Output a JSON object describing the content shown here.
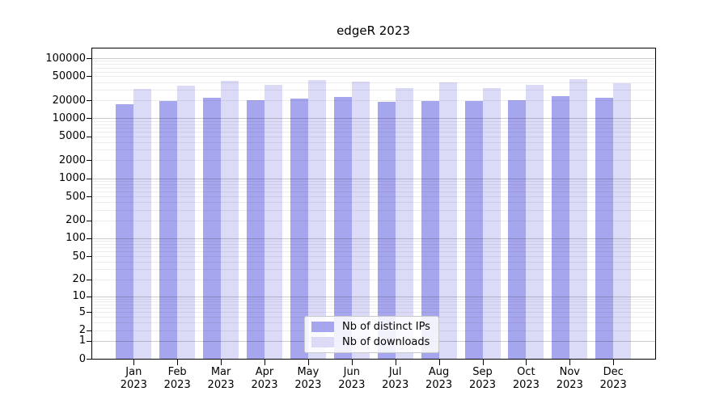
{
  "title": "edgeR 2023",
  "legend": {
    "items": [
      {
        "label": "Nb of distinct IPs",
        "color": "#a6a6ee"
      },
      {
        "label": "Nb of downloads",
        "color": "#dbdbf8"
      }
    ]
  },
  "chart_data": {
    "type": "bar",
    "title": "edgeR 2023",
    "categories": [
      "Jan",
      "Feb",
      "Mar",
      "Apr",
      "May",
      "Jun",
      "Jul",
      "Aug",
      "Sep",
      "Oct",
      "Nov",
      "Dec"
    ],
    "year_label": "2023",
    "series": [
      {
        "name": "Nb of distinct IPs",
        "color": "#a6a6ee",
        "values": [
          17300,
          19600,
          22000,
          19800,
          21500,
          22800,
          18800,
          19600,
          19200,
          20200,
          23500,
          22000
        ]
      },
      {
        "name": "Nb of downloads",
        "color": "#dbdbf8",
        "values": [
          31000,
          34500,
          41500,
          36000,
          44000,
          41200,
          32000,
          40000,
          32000,
          36500,
          45200,
          38500
        ]
      }
    ],
    "y_scale": "log10(value+1)",
    "ylim": [
      0,
      100000
    ],
    "yticks": [
      100000,
      50000,
      20000,
      10000,
      5000,
      2000,
      1000,
      500,
      200,
      100,
      50,
      20,
      10,
      5,
      2,
      1,
      0
    ],
    "grid": true,
    "gridlines": "1-2-...-9 per decade, powers of 10 darker, drawn over bars",
    "legend_position": "inside-bottom-center"
  }
}
